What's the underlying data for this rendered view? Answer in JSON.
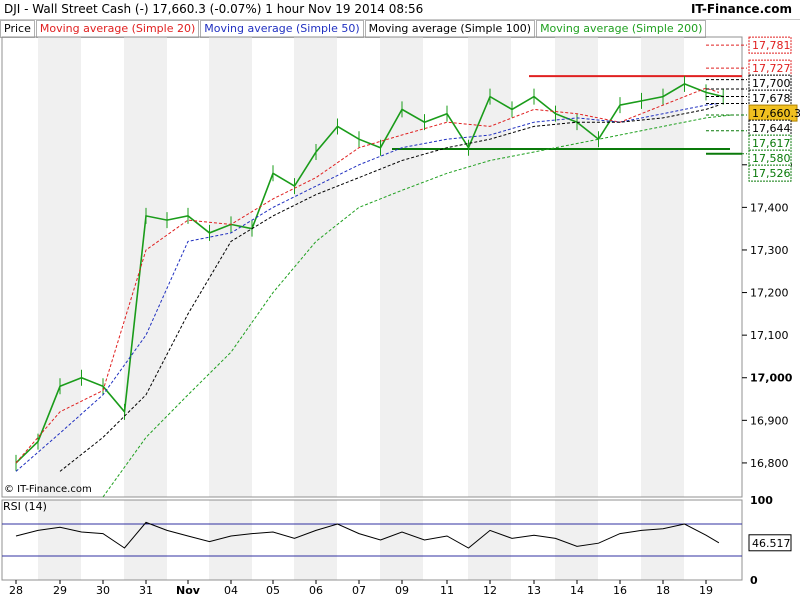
{
  "header": {
    "title": "DJI - Wall Street Cash (-)    17,660.3 (-0.07%)    1 hour  Nov 19 2014 08:56",
    "brand": "IT-Finance.com"
  },
  "legend": {
    "price": "Price",
    "ma20": "Moving average (Simple 20)",
    "ma50": "Moving average (Simple 50)",
    "ma100": "Moving average (Simple 100)",
    "ma200": "Moving average (Simple 200)"
  },
  "watermark": "© IT-Finance.com",
  "rsi_label": "RSI (14)",
  "rsi_value": "46.517",
  "current_price": "17,660.3",
  "colors": {
    "candle": "#1a9c1a",
    "ma20": "#e02020",
    "ma50": "#2030c0",
    "ma100": "#000000",
    "ma200": "#20a020",
    "support": "#0a7a0a",
    "resistance": "#e02020",
    "band": "#f0f0f0"
  },
  "chart_data": {
    "type": "line",
    "ylim": [
      16720,
      17800
    ],
    "y_ticks": [
      "17,500",
      "17,400",
      "17,300",
      "17,200",
      "17,100",
      "17,000",
      "16,900",
      "16,800"
    ],
    "y_tick_values": [
      17500,
      17400,
      17300,
      17200,
      17100,
      17000,
      16900,
      16800
    ],
    "x_ticks": [
      "28",
      "29",
      "30",
      "31",
      "Nov",
      "04",
      "05",
      "06",
      "07",
      "09",
      "11",
      "12",
      "13",
      "14",
      "16",
      "18",
      "19"
    ],
    "x_tick_index": [
      0,
      1,
      2,
      3,
      4,
      5,
      6,
      7,
      8,
      9,
      10,
      11,
      12,
      13,
      14,
      15,
      16
    ],
    "price_labels": [
      {
        "text": "17,781",
        "value": 17781,
        "style": "red"
      },
      {
        "text": "17,727",
        "value": 17727,
        "style": "red"
      },
      {
        "text": "17,700",
        "value": 17700,
        "style": "black"
      },
      {
        "text": "17,678",
        "value": 17678,
        "style": "black"
      },
      {
        "text": "17,660.3",
        "value": 17660.3,
        "style": "current"
      },
      {
        "text": "17,644",
        "value": 17644,
        "style": "black"
      },
      {
        "text": "17,617",
        "value": 17617,
        "style": "green"
      },
      {
        "text": "17,580",
        "value": 17580,
        "style": "green"
      },
      {
        "text": "17,526",
        "value": 17526,
        "style": "green"
      }
    ],
    "levels": {
      "resistance": 17708,
      "support_high": 17537,
      "support_low": 17526
    },
    "series": [
      {
        "name": "Price",
        "x": [
          0,
          0.5,
          1,
          1.5,
          2,
          2.5,
          3,
          3.5,
          4,
          4.5,
          5,
          5.5,
          6,
          6.5,
          7,
          7.5,
          8,
          8.5,
          9,
          9.5,
          10,
          10.5,
          11,
          11.5,
          12,
          12.5,
          13,
          13.5,
          14,
          14.5,
          15,
          15.5,
          16,
          16.4
        ],
        "values": [
          16800,
          16850,
          16980,
          17000,
          16980,
          16920,
          17380,
          17370,
          17380,
          17340,
          17360,
          17350,
          17480,
          17450,
          17530,
          17590,
          17560,
          17540,
          17630,
          17600,
          17620,
          17540,
          17660,
          17630,
          17660,
          17620,
          17600,
          17560,
          17640,
          17650,
          17660,
          17690,
          17670,
          17660
        ]
      },
      {
        "name": "Moving average (Simple 20)",
        "x": [
          0,
          1,
          2,
          3,
          4,
          5,
          6,
          7,
          8,
          9,
          10,
          11,
          12,
          13,
          14,
          15,
          16,
          16.3
        ],
        "values": [
          16800,
          16920,
          16970,
          17300,
          17370,
          17360,
          17420,
          17470,
          17540,
          17570,
          17600,
          17590,
          17630,
          17620,
          17600,
          17640,
          17680,
          17670
        ]
      },
      {
        "name": "Moving average (Simple 50)",
        "x": [
          0,
          1,
          2,
          3,
          4,
          5,
          6,
          7,
          8,
          9,
          10,
          11,
          12,
          13,
          14,
          15,
          16,
          16.3
        ],
        "values": [
          16780,
          16870,
          16960,
          17100,
          17320,
          17340,
          17400,
          17450,
          17500,
          17540,
          17560,
          17570,
          17600,
          17610,
          17600,
          17620,
          17640,
          17644
        ]
      },
      {
        "name": "Moving average (Simple 100)",
        "x": [
          1,
          2,
          3,
          4,
          5,
          6,
          7,
          8,
          9,
          10,
          11,
          12,
          13,
          14,
          15,
          16,
          16.3
        ],
        "values": [
          16780,
          16860,
          16960,
          17150,
          17320,
          17380,
          17430,
          17470,
          17510,
          17540,
          17560,
          17590,
          17600,
          17600,
          17610,
          17630,
          17640
        ]
      },
      {
        "name": "Moving average (Simple 200)",
        "x": [
          2,
          3,
          4,
          5,
          6,
          7,
          8,
          9,
          10,
          11,
          12,
          13,
          14,
          15,
          16,
          16.6
        ],
        "values": [
          16720,
          16860,
          16960,
          17060,
          17200,
          17320,
          17400,
          17440,
          17480,
          17510,
          17530,
          17550,
          17570,
          17590,
          17610,
          17617
        ]
      }
    ],
    "rsi": {
      "name": "RSI (14)",
      "ylim": [
        0,
        100
      ],
      "y_ticks": [
        "100",
        "0"
      ],
      "upper": 70,
      "lower": 30,
      "last": 46.517,
      "x": [
        0,
        0.5,
        1,
        1.5,
        2,
        2.5,
        3,
        3.5,
        4,
        4.5,
        5,
        5.5,
        6,
        6.5,
        7,
        7.5,
        8,
        8.5,
        9,
        9.5,
        10,
        10.5,
        11,
        11.5,
        12,
        12.5,
        13,
        13.5,
        14,
        14.5,
        15,
        15.5,
        16,
        16.3
      ],
      "values": [
        55,
        62,
        66,
        60,
        58,
        40,
        72,
        62,
        55,
        48,
        55,
        58,
        60,
        52,
        62,
        70,
        58,
        50,
        60,
        50,
        55,
        40,
        62,
        52,
        56,
        52,
        42,
        46,
        58,
        62,
        64,
        70,
        56,
        46.5
      ]
    }
  }
}
